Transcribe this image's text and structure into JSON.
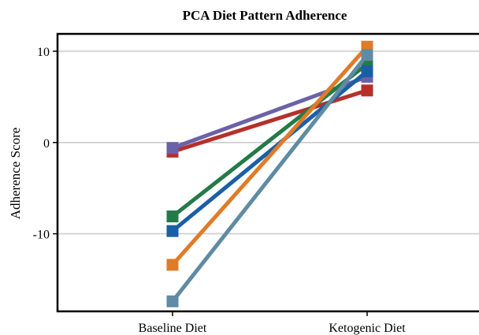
{
  "chart_data": {
    "type": "line",
    "title": "PCA Diet Pattern Adherence",
    "xlabel": "",
    "ylabel": "Adherence Score",
    "categories": [
      "Baseline Diet",
      "Ketogenic Diet"
    ],
    "ylim": [
      -18.5,
      11.9
    ],
    "yticks": [
      10,
      0,
      -10
    ],
    "grid": "horizontal",
    "series": [
      {
        "color": "#b5302a",
        "values": [
          -1.0,
          5.7
        ]
      },
      {
        "color": "#6b61a8",
        "values": [
          -0.6,
          7.2
        ]
      },
      {
        "color": "#247a48",
        "values": [
          -8.1,
          8.6
        ]
      },
      {
        "color": "#1a5ea6",
        "values": [
          -9.7,
          7.8
        ]
      },
      {
        "color": "#e07b28",
        "values": [
          -13.4,
          10.5
        ]
      },
      {
        "color": "#5f8ba3",
        "values": [
          -17.4,
          9.6
        ]
      }
    ]
  }
}
